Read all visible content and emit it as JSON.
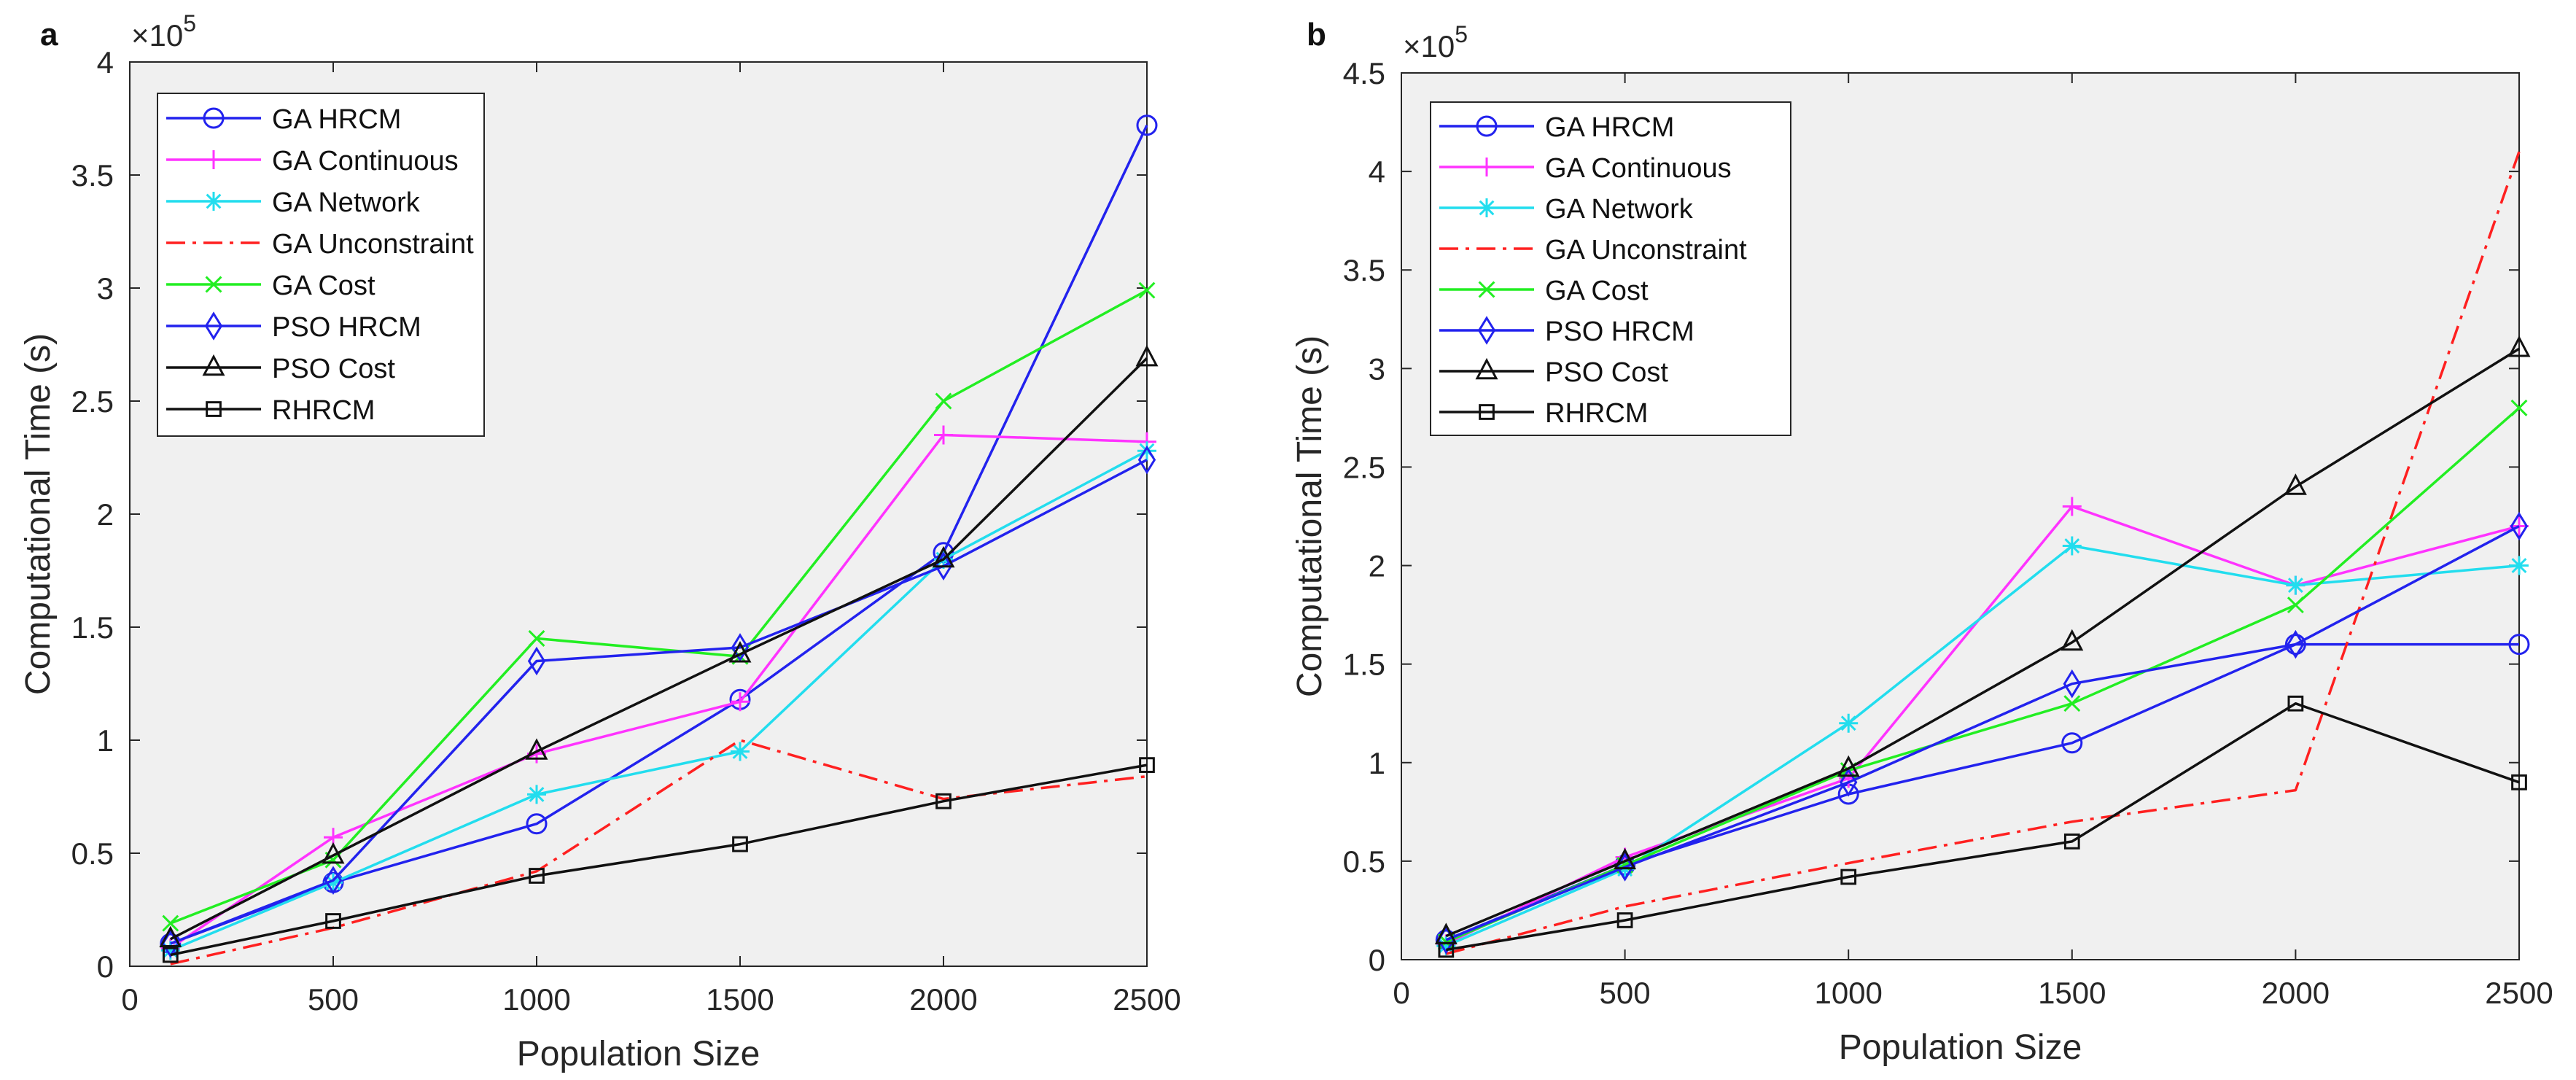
{
  "chart_data": [
    {
      "type": "line",
      "panel_label": "a",
      "title": "",
      "xlabel": "Population Size",
      "ylabel": "Computational Time (s)",
      "exponent_label": "×10",
      "exponent_power": "5",
      "xlim": [
        0,
        2500
      ],
      "ylim": [
        0,
        4
      ],
      "xticks": [
        0,
        500,
        1000,
        1500,
        2000,
        2500
      ],
      "xtick_labels": [
        "0",
        "500",
        "1000",
        "1500",
        "2000",
        "2500"
      ],
      "yticks": [
        0,
        0.5,
        1,
        1.5,
        2,
        2.5,
        3,
        3.5,
        4
      ],
      "ytick_labels": [
        "0",
        "0.5",
        "1",
        "1.5",
        "2",
        "2.5",
        "3",
        "3.5",
        "4"
      ],
      "legend_position": "top-left",
      "x": [
        100,
        500,
        1000,
        1500,
        2000,
        2500
      ],
      "series": [
        {
          "name": "GA HRCM",
          "color": "#2222ee",
          "marker": "circle",
          "dash": "",
          "values": [
            0.1,
            0.37,
            0.63,
            1.18,
            1.83,
            3.72
          ]
        },
        {
          "name": "GA Continuous",
          "color": "#ff33ff",
          "marker": "plus",
          "dash": "",
          "values": [
            0.08,
            0.57,
            0.94,
            1.17,
            2.35,
            2.32
          ]
        },
        {
          "name": "GA Network",
          "color": "#22ddee",
          "marker": "asterisk",
          "dash": "",
          "values": [
            0.07,
            0.37,
            0.76,
            0.95,
            1.8,
            2.28
          ]
        },
        {
          "name": "GA Unconstraint",
          "color": "#ff2020",
          "marker": "none",
          "dash": "dashdot",
          "values": [
            0.01,
            0.17,
            0.42,
            1.0,
            0.74,
            0.84
          ]
        },
        {
          "name": "GA Cost",
          "color": "#22ee22",
          "marker": "x",
          "dash": "",
          "values": [
            0.19,
            0.47,
            1.45,
            1.37,
            2.5,
            2.99
          ]
        },
        {
          "name": "PSO HRCM",
          "color": "#2222ee",
          "marker": "diamond",
          "dash": "",
          "values": [
            0.1,
            0.38,
            1.35,
            1.41,
            1.77,
            2.24
          ]
        },
        {
          "name": "PSO Cost",
          "color": "#111111",
          "marker": "triangle",
          "dash": "",
          "values": [
            0.12,
            0.49,
            0.95,
            1.38,
            1.8,
            2.69
          ]
        },
        {
          "name": "RHRCM",
          "color": "#111111",
          "marker": "square",
          "dash": "",
          "values": [
            0.05,
            0.2,
            0.4,
            0.54,
            0.73,
            0.89
          ]
        }
      ]
    },
    {
      "type": "line",
      "panel_label": "b",
      "title": "",
      "xlabel": "Population Size",
      "ylabel": "Computational Time (s)",
      "exponent_label": "×10",
      "exponent_power": "5",
      "xlim": [
        0,
        2500
      ],
      "ylim": [
        0,
        4.5
      ],
      "xticks": [
        0,
        500,
        1000,
        1500,
        2000,
        2500
      ],
      "xtick_labels": [
        "0",
        "500",
        "1000",
        "1500",
        "2000",
        "2500"
      ],
      "yticks": [
        0,
        0.5,
        1,
        1.5,
        2,
        2.5,
        3,
        3.5,
        4,
        4.5
      ],
      "ytick_labels": [
        "0",
        "0.5",
        "1",
        "1.5",
        "2",
        "2.5",
        "3",
        "3.5",
        "4",
        "4.5"
      ],
      "legend_position": "top-left",
      "x": [
        100,
        500,
        1000,
        1500,
        2000,
        2500
      ],
      "series": [
        {
          "name": "GA HRCM",
          "color": "#2222ee",
          "marker": "circle",
          "dash": "",
          "values": [
            0.1,
            0.48,
            0.84,
            1.1,
            1.6,
            1.6
          ]
        },
        {
          "name": "GA Continuous",
          "color": "#ff33ff",
          "marker": "plus",
          "dash": "",
          "values": [
            0.08,
            0.52,
            0.92,
            2.3,
            1.9,
            2.2
          ]
        },
        {
          "name": "GA Network",
          "color": "#22ddee",
          "marker": "asterisk",
          "dash": "",
          "values": [
            0.07,
            0.46,
            1.2,
            2.1,
            1.9,
            2.0
          ]
        },
        {
          "name": "GA Unconstraint",
          "color": "#ff2020",
          "marker": "none",
          "dash": "dashdot",
          "values": [
            0.03,
            0.27,
            0.49,
            0.7,
            0.86,
            4.1
          ]
        },
        {
          "name": "GA Cost",
          "color": "#22ee22",
          "marker": "x",
          "dash": "",
          "values": [
            0.09,
            0.48,
            0.96,
            1.3,
            1.8,
            2.8
          ]
        },
        {
          "name": "PSO HRCM",
          "color": "#2222ee",
          "marker": "diamond",
          "dash": "",
          "values": [
            0.1,
            0.47,
            0.9,
            1.4,
            1.6,
            2.2
          ]
        },
        {
          "name": "PSO Cost",
          "color": "#111111",
          "marker": "triangle",
          "dash": "",
          "values": [
            0.12,
            0.5,
            0.97,
            1.61,
            2.4,
            3.1
          ]
        },
        {
          "name": "RHRCM",
          "color": "#111111",
          "marker": "square",
          "dash": "",
          "values": [
            0.05,
            0.2,
            0.42,
            0.6,
            1.3,
            0.9
          ]
        }
      ]
    }
  ]
}
